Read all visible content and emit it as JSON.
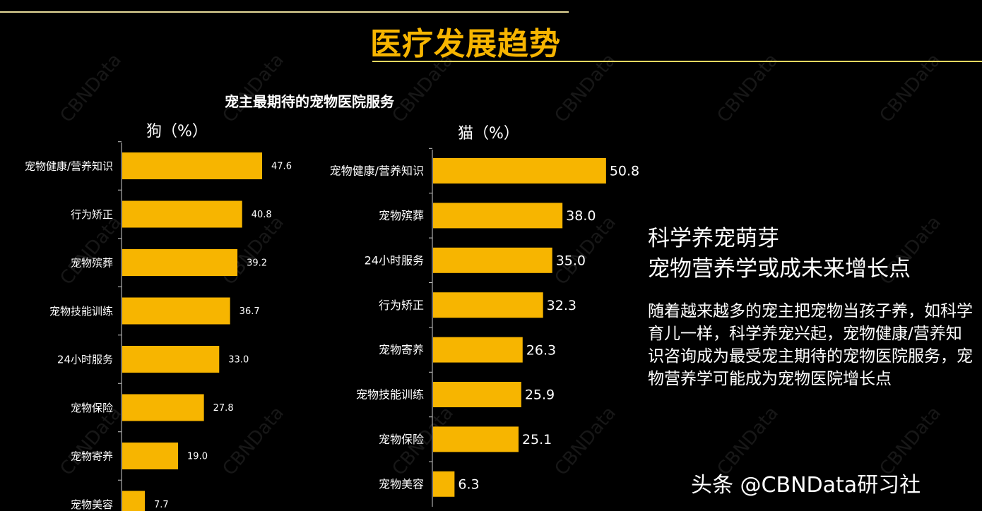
{
  "header": {
    "title": "医疗发展趋势"
  },
  "watermark": "CBNData",
  "chart_data": [
    {
      "type": "bar",
      "orientation": "horizontal",
      "title": "宠主最期待的宠物医院服务",
      "subtitle": "狗（%）",
      "categories": [
        "宠物健康/营养知识",
        "行为矫正",
        "宠物殡葬",
        "宠物技能训练",
        "24小时服务",
        "宠物保险",
        "宠物寄养",
        "宠物美容"
      ],
      "values": [
        47.6,
        40.8,
        39.2,
        36.7,
        33.0,
        27.8,
        19.0,
        7.7
      ],
      "value_labels": [
        "47.6",
        "40.8",
        "39.2",
        "36.7",
        "33.0",
        "27.8",
        "19.0",
        "7.7"
      ],
      "color": "#f7b500"
    },
    {
      "type": "bar",
      "orientation": "horizontal",
      "subtitle": "猫（%）",
      "categories": [
        "宠物健康/营养知识",
        "宠物殡葬",
        "24小时服务",
        "行为矫正",
        "宠物寄养",
        "宠物技能训练",
        "宠物保险",
        "宠物美容"
      ],
      "values": [
        50.8,
        38.0,
        35.0,
        32.3,
        26.3,
        25.9,
        25.1,
        6.3
      ],
      "value_labels": [
        "50.8",
        "38.0",
        "35.0",
        "32.3",
        "26.3",
        "25.9",
        "25.1",
        "6.3"
      ],
      "color": "#f7b500"
    }
  ],
  "side": {
    "heading1": "科学养宠萌芽",
    "heading2": "宠物营养学或成未来增长点",
    "paragraph": "随着越来越多的宠主把宠物当孩子养，如科学育儿一样，科学养宠兴起，宠物健康/营养知识咨询成为最受宠主期待的宠物医院服务，宠物营养学可能成为宠物医院增长点"
  },
  "footer": "头条 @CBNData研习社"
}
